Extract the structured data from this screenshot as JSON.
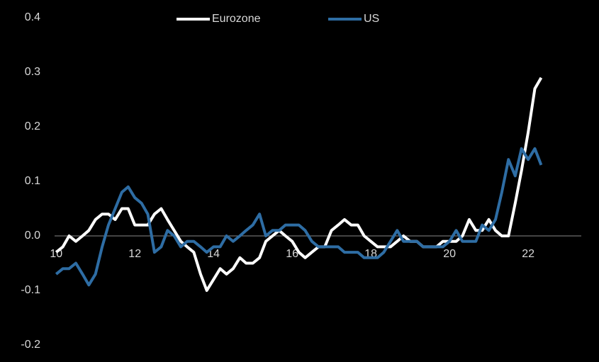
{
  "chart_data": {
    "type": "line",
    "x": [
      2010,
      2010.17,
      2010.33,
      2010.5,
      2010.67,
      2010.83,
      2011,
      2011.17,
      2011.33,
      2011.5,
      2011.67,
      2011.83,
      2012,
      2012.17,
      2012.33,
      2012.5,
      2012.67,
      2012.83,
      2013,
      2013.17,
      2013.33,
      2013.5,
      2013.67,
      2013.83,
      2014,
      2014.17,
      2014.33,
      2014.5,
      2014.67,
      2014.83,
      2015,
      2015.17,
      2015.33,
      2015.5,
      2015.67,
      2015.83,
      2016,
      2016.17,
      2016.33,
      2016.5,
      2016.67,
      2016.83,
      2017,
      2017.17,
      2017.33,
      2017.5,
      2017.67,
      2017.83,
      2018,
      2018.17,
      2018.33,
      2018.5,
      2018.67,
      2018.83,
      2019,
      2019.17,
      2019.33,
      2019.5,
      2019.67,
      2019.83,
      2020,
      2020.17,
      2020.33,
      2020.5,
      2020.67,
      2020.83,
      2021,
      2021.17,
      2021.33,
      2021.5,
      2021.67,
      2021.83,
      2022,
      2022.17,
      2022.33
    ],
    "series": [
      {
        "name": "Eurozone",
        "color": "#ffffff",
        "values": [
          -0.03,
          -0.02,
          0.0,
          -0.01,
          0.0,
          0.01,
          0.03,
          0.04,
          0.04,
          0.03,
          0.05,
          0.05,
          0.02,
          0.02,
          0.02,
          0.04,
          0.05,
          0.03,
          0.01,
          -0.01,
          -0.02,
          -0.03,
          -0.07,
          -0.1,
          -0.08,
          -0.06,
          -0.07,
          -0.06,
          -0.04,
          -0.05,
          -0.05,
          -0.04,
          -0.01,
          0.0,
          0.01,
          0.0,
          -0.01,
          -0.03,
          -0.04,
          -0.03,
          -0.02,
          -0.02,
          0.01,
          0.02,
          0.03,
          0.02,
          0.02,
          0.0,
          -0.01,
          -0.02,
          -0.02,
          -0.02,
          -0.01,
          0.0,
          -0.01,
          -0.01,
          -0.02,
          -0.02,
          -0.02,
          -0.01,
          -0.01,
          -0.01,
          0.0,
          0.03,
          0.01,
          0.01,
          0.03,
          0.01,
          0.0,
          0.0,
          0.06,
          0.12,
          0.19,
          0.27,
          0.29
        ]
      },
      {
        "name": "US",
        "color": "#2e6da4",
        "values": [
          -0.07,
          -0.06,
          -0.06,
          -0.05,
          -0.07,
          -0.09,
          -0.07,
          -0.02,
          0.02,
          0.05,
          0.08,
          0.09,
          0.07,
          0.06,
          0.04,
          -0.03,
          -0.02,
          0.01,
          0.0,
          -0.02,
          -0.01,
          -0.01,
          -0.02,
          -0.03,
          -0.02,
          -0.02,
          0.0,
          -0.01,
          0.0,
          0.01,
          0.02,
          0.04,
          0.0,
          0.01,
          0.01,
          0.02,
          0.02,
          0.02,
          0.01,
          -0.01,
          -0.02,
          -0.02,
          -0.02,
          -0.02,
          -0.03,
          -0.03,
          -0.03,
          -0.04,
          -0.04,
          -0.04,
          -0.03,
          -0.01,
          0.01,
          -0.01,
          -0.01,
          -0.01,
          -0.02,
          -0.02,
          -0.02,
          -0.02,
          -0.01,
          0.01,
          -0.01,
          -0.01,
          -0.01,
          0.02,
          0.01,
          0.03,
          0.08,
          0.14,
          0.11,
          0.16,
          0.14,
          0.16,
          0.13
        ]
      }
    ],
    "xlim": [
      2009.96,
      2023.35
    ],
    "xticks": [
      {
        "value": 2010,
        "label": "10"
      },
      {
        "value": 2012,
        "label": "12"
      },
      {
        "value": 2014,
        "label": "14"
      },
      {
        "value": 2016,
        "label": "16"
      },
      {
        "value": 2018,
        "label": "18"
      },
      {
        "value": 2020,
        "label": "20"
      },
      {
        "value": 2022,
        "label": "22"
      }
    ],
    "ylim": [
      -0.2,
      0.4
    ],
    "yticks": [
      {
        "value": 0.4,
        "label": "0.4"
      },
      {
        "value": 0.3,
        "label": "0.3"
      },
      {
        "value": 0.2,
        "label": "0.2"
      },
      {
        "value": 0.1,
        "label": "0.1"
      },
      {
        "value": 0.0,
        "label": "0.0"
      },
      {
        "value": -0.1,
        "label": "-0.1"
      },
      {
        "value": -0.2,
        "label": "-0.2"
      }
    ],
    "legend": "top",
    "grid": false
  }
}
